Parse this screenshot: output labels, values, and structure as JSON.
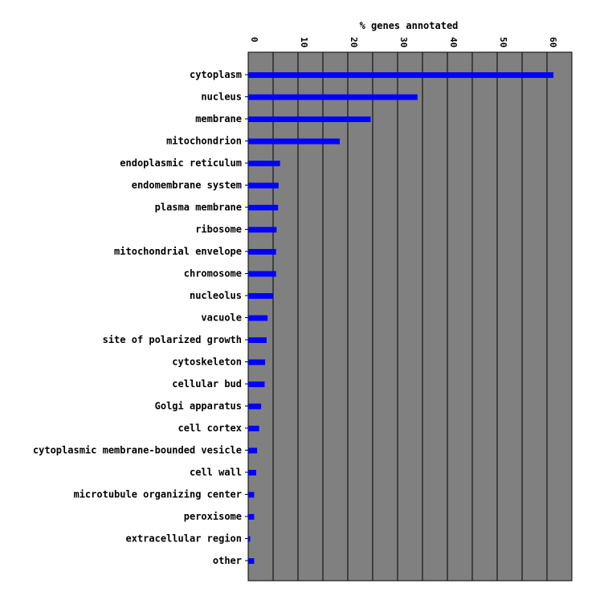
{
  "chart_data": {
    "type": "bar",
    "orientation": "horizontal",
    "title": "",
    "xlabel": "% genes annotated",
    "ylabel": "",
    "xlim": [
      0,
      65
    ],
    "xticks": [
      "0",
      "10",
      "20",
      "30",
      "40",
      "50",
      "60"
    ],
    "grid": true,
    "colors": {
      "bar": "#0000ff",
      "plot_bg": "#808080",
      "gridline": "#000000"
    },
    "categories": [
      "cytoplasm",
      "nucleus",
      "membrane",
      "mitochondrion",
      "endoplasmic reticulum",
      "endomembrane system",
      "plasma membrane",
      "ribosome",
      "mitochondrial envelope",
      "chromosome",
      "nucleolus",
      "vacuole",
      "site of polarized growth",
      "cytoskeleton",
      "cellular bud",
      "Golgi apparatus",
      "cell cortex",
      "cytoplasmic membrane-bounded vesicle",
      "cell wall",
      "microtubule organizing center",
      "peroxisome",
      "extracellular region",
      "other"
    ],
    "values": [
      61.3,
      34.0,
      24.6,
      18.4,
      6.4,
      6.1,
      6.0,
      5.7,
      5.6,
      5.6,
      5.0,
      3.9,
      3.7,
      3.4,
      3.3,
      2.6,
      2.2,
      1.8,
      1.6,
      1.2,
      1.2,
      0.4,
      1.2
    ]
  }
}
